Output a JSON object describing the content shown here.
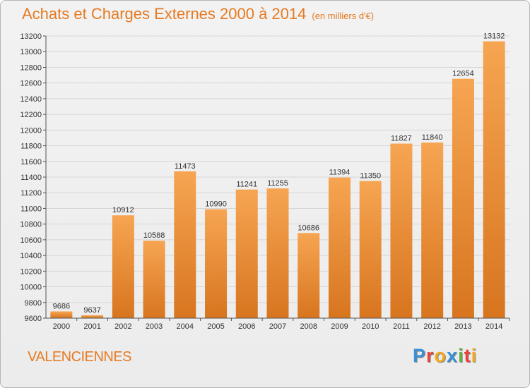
{
  "title": "Achats et Charges Externes 2000 à 2014",
  "subtitle": "(en milliers d'€)",
  "city": "VALENCIENNES",
  "brand": {
    "letters": [
      "P",
      "r",
      "o",
      "x",
      "i",
      "t",
      "i"
    ],
    "colors": [
      "#3a8fd6",
      "#e8443a",
      "#f2a81d",
      "#3a8fd6",
      "#5db33c",
      "#e8443a",
      "#f2a81d"
    ]
  },
  "colors": {
    "bar_light": "#f6a552",
    "bar_dark": "#d8751f",
    "grid": "#d6d6d6",
    "title": "#e57a22"
  },
  "chart_data": {
    "type": "bar",
    "title": "Achats et Charges Externes 2000 à 2014",
    "subtitle": "(en milliers d'€)",
    "xlabel": "",
    "ylabel": "",
    "ylim": [
      9600,
      13200
    ],
    "yticks": [
      9600,
      9800,
      10000,
      10200,
      10400,
      10600,
      10800,
      11000,
      11200,
      11400,
      11600,
      11800,
      12000,
      12200,
      12400,
      12600,
      12800,
      13000,
      13200
    ],
    "grid": true,
    "categories": [
      "2000",
      "2001",
      "2002",
      "2003",
      "2004",
      "2005",
      "2006",
      "2007",
      "2008",
      "2009",
      "2010",
      "2011",
      "2012",
      "2013",
      "2014"
    ],
    "values": [
      9686,
      9637,
      10912,
      10588,
      11473,
      10990,
      11241,
      11255,
      10686,
      11394,
      11350,
      11827,
      11840,
      12654,
      13132
    ]
  }
}
